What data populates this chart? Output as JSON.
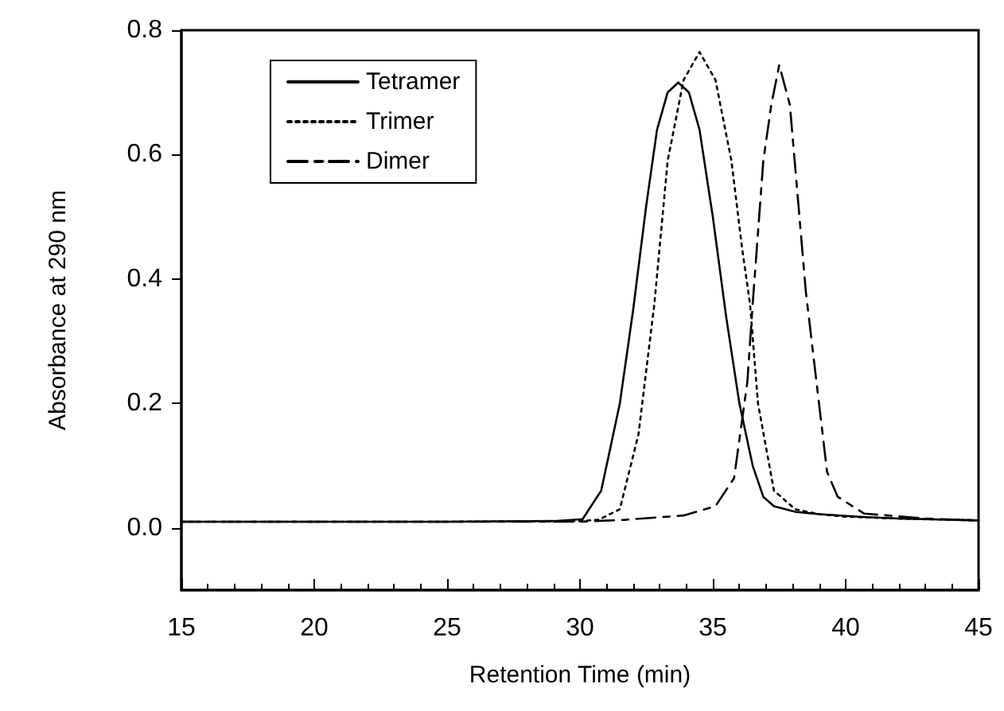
{
  "chart_data": {
    "type": "line",
    "xlabel": "Retention Time (min)",
    "ylabel": "Absorbance at 290 nm",
    "xlim": [
      15,
      45
    ],
    "xticks": [
      15,
      20,
      25,
      30,
      35,
      40,
      45
    ],
    "ylim": [
      -0.1,
      0.8
    ],
    "yticks": [
      {
        "value": 0,
        "label": "0.0"
      },
      {
        "value": 0.2,
        "label": "0.2"
      },
      {
        "value": 0.4,
        "label": "0.4"
      },
      {
        "value": 0.6,
        "label": "0.6"
      },
      {
        "value": 0.8,
        "label": "0.8"
      }
    ],
    "grid": false,
    "legend": "top left",
    "marker": "none",
    "series": [
      {
        "name": "Tetramer",
        "color": "#000000",
        "line_style": "solid",
        "x": [
          15,
          20,
          25,
          29,
          30.1,
          30.8,
          31.5,
          32.0,
          32.5,
          32.9,
          33.3,
          33.7,
          34.1,
          34.5,
          35.0,
          35.5,
          36.0,
          36.5,
          36.9,
          37.3,
          38.1,
          39,
          40.5,
          42,
          45
        ],
        "values": [
          0.01,
          0.01,
          0.01,
          0.011,
          0.014,
          0.06,
          0.2,
          0.35,
          0.52,
          0.64,
          0.7,
          0.716,
          0.7,
          0.64,
          0.5,
          0.34,
          0.2,
          0.1,
          0.05,
          0.035,
          0.026,
          0.022,
          0.018,
          0.015,
          0.012
        ]
      },
      {
        "name": "Trimer",
        "color": "#000000",
        "line_style": "dotted",
        "x": [
          15,
          20,
          25,
          30,
          30.7,
          31.5,
          32.2,
          32.8,
          33.3,
          33.9,
          34.5,
          35.1,
          35.7,
          36.1,
          36.4,
          36.7,
          37.3,
          38.1,
          39,
          40,
          42,
          45
        ],
        "values": [
          0.01,
          0.01,
          0.01,
          0.011,
          0.013,
          0.03,
          0.15,
          0.36,
          0.59,
          0.72,
          0.765,
          0.72,
          0.59,
          0.45,
          0.36,
          0.2,
          0.06,
          0.03,
          0.022,
          0.018,
          0.015,
          0.012
        ]
      },
      {
        "name": "Dimer",
        "color": "#000000",
        "line_style": "dashed",
        "x": [
          15,
          20,
          25,
          30,
          31.7,
          33.9,
          35.1,
          35.8,
          36.3,
          36.5,
          36.9,
          37.2,
          37.5,
          37.9,
          38.5,
          38.9,
          39.3,
          39.7,
          40.7,
          43,
          45
        ],
        "values": [
          0.01,
          0.01,
          0.01,
          0.01,
          0.013,
          0.02,
          0.035,
          0.08,
          0.235,
          0.36,
          0.59,
          0.68,
          0.744,
          0.68,
          0.38,
          0.235,
          0.09,
          0.05,
          0.023,
          0.015,
          0.012
        ]
      }
    ]
  }
}
